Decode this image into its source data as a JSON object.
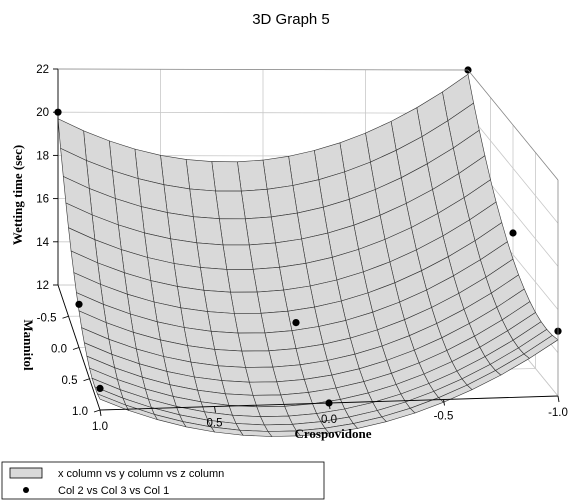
{
  "chart_data": {
    "type": "surface3d",
    "title": "3D Graph 5",
    "xlabel": "Crospovidone",
    "ylabel": "Mannitol",
    "zlabel": "Wetting time (sec)",
    "xlim": [
      1.0,
      -1.0
    ],
    "ylim": [
      1.0,
      -1.0
    ],
    "zlim": [
      12,
      22
    ],
    "x_ticks": [
      "1.0",
      "0.5",
      "0.0",
      "-0.5",
      "-1.0"
    ],
    "y_ticks": [
      "1.0",
      "0.5",
      "0.0",
      "-0.5"
    ],
    "z_ticks": [
      "12",
      "14",
      "16",
      "18",
      "20",
      "22"
    ],
    "grid": true,
    "legend_position": "bottom-left",
    "surface_series": {
      "name": "x column vs y column vs z column",
      "fill": "#d9d9d9",
      "corners": [
        {
          "x": 1.0,
          "y": -1.0,
          "z": 19.7
        },
        {
          "x": -1.0,
          "y": -1.0,
          "z": 21.8
        },
        {
          "x": 1.0,
          "y": 1.0,
          "z": 12.5
        },
        {
          "x": -1.0,
          "y": 1.0,
          "z": 14.6
        }
      ],
      "minimum": {
        "x": 0.0,
        "y": 0.0,
        "z": 11.8
      }
    },
    "points_series": {
      "name": "Col 2 vs Col 3 vs Col 1",
      "color": "#000000",
      "points": [
        {
          "x": 1.0,
          "y": -1.0,
          "z": 20
        },
        {
          "x": -1.0,
          "y": -1.0,
          "z": 22
        },
        {
          "x": 1.0,
          "y": 0.0,
          "z": 14
        },
        {
          "x": 0.0,
          "y": 0.0,
          "z": 13
        },
        {
          "x": -1.0,
          "y": 0.0,
          "z": 17
        },
        {
          "x": 1.0,
          "y": 1.0,
          "z": 13
        },
        {
          "x": 0.0,
          "y": 1.0,
          "z": 12
        },
        {
          "x": -1.0,
          "y": 1.0,
          "z": 15
        }
      ]
    }
  }
}
